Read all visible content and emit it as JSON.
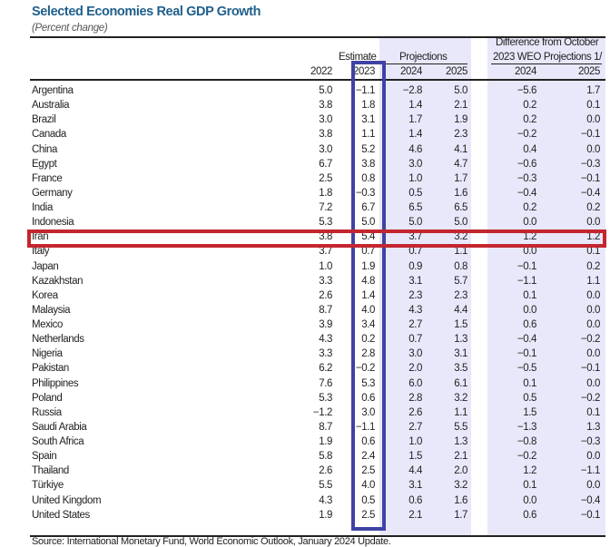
{
  "title": "Selected Economies Real GDP Growth",
  "subtitle": "(Percent change)",
  "headers": {
    "estimate": "Estimate",
    "projections": "Projections",
    "difference_line1": "Difference from October",
    "difference_line2": "2023 WEO Projections 1/",
    "years": [
      "2022",
      "2023",
      "2024",
      "2025",
      "2024",
      "2025"
    ]
  },
  "rows": [
    {
      "country": "Argentina",
      "values": [
        "5.0",
        "−1.1",
        "−2.8",
        "5.0",
        "−5.6",
        "1.7"
      ]
    },
    {
      "country": "Australia",
      "values": [
        "3.8",
        "1.8",
        "1.4",
        "2.1",
        "0.2",
        "0.1"
      ]
    },
    {
      "country": "Brazil",
      "values": [
        "3.0",
        "3.1",
        "1.7",
        "1.9",
        "0.2",
        "0.0"
      ]
    },
    {
      "country": "Canada",
      "values": [
        "3.8",
        "1.1",
        "1.4",
        "2.3",
        "−0.2",
        "−0.1"
      ]
    },
    {
      "country": "China",
      "values": [
        "3.0",
        "5.2",
        "4.6",
        "4.1",
        "0.4",
        "0.0"
      ]
    },
    {
      "country": "Egypt",
      "values": [
        "6.7",
        "3.8",
        "3.0",
        "4.7",
        "−0.6",
        "−0.3"
      ]
    },
    {
      "country": "France",
      "values": [
        "2.5",
        "0.8",
        "1.0",
        "1.7",
        "−0.3",
        "−0.1"
      ]
    },
    {
      "country": "Germany",
      "values": [
        "1.8",
        "−0.3",
        "0.5",
        "1.6",
        "−0.4",
        "−0.4"
      ]
    },
    {
      "country": "India",
      "values": [
        "7.2",
        "6.7",
        "6.5",
        "6.5",
        "0.2",
        "0.2"
      ]
    },
    {
      "country": "Indonesia",
      "values": [
        "5.3",
        "5.0",
        "5.0",
        "5.0",
        "0.0",
        "0.0"
      ]
    },
    {
      "country": "Iran",
      "values": [
        "3.8",
        "5.4",
        "3.7",
        "3.2",
        "1.2",
        "1.2"
      ]
    },
    {
      "country": "Italy",
      "values": [
        "3.7",
        "0.7",
        "0.7",
        "1.1",
        "0.0",
        "0.1"
      ]
    },
    {
      "country": "Japan",
      "values": [
        "1.0",
        "1.9",
        "0.9",
        "0.8",
        "−0.1",
        "0.2"
      ]
    },
    {
      "country": "Kazakhstan",
      "values": [
        "3.3",
        "4.8",
        "3.1",
        "5.7",
        "−1.1",
        "1.1"
      ]
    },
    {
      "country": "Korea",
      "values": [
        "2.6",
        "1.4",
        "2.3",
        "2.3",
        "0.1",
        "0.0"
      ]
    },
    {
      "country": "Malaysia",
      "values": [
        "8.7",
        "4.0",
        "4.3",
        "4.4",
        "0.0",
        "0.0"
      ]
    },
    {
      "country": "Mexico",
      "values": [
        "3.9",
        "3.4",
        "2.7",
        "1.5",
        "0.6",
        "0.0"
      ]
    },
    {
      "country": "Netherlands",
      "values": [
        "4.3",
        "0.2",
        "0.7",
        "1.3",
        "−0.4",
        "−0.2"
      ]
    },
    {
      "country": "Nigeria",
      "values": [
        "3.3",
        "2.8",
        "3.0",
        "3.1",
        "−0.1",
        "0.0"
      ]
    },
    {
      "country": "Pakistan",
      "values": [
        "6.2",
        "−0.2",
        "2.0",
        "3.5",
        "−0.5",
        "−0.1"
      ]
    },
    {
      "country": "Philippines",
      "values": [
        "7.6",
        "5.3",
        "6.0",
        "6.1",
        "0.1",
        "0.0"
      ]
    },
    {
      "country": "Poland",
      "values": [
        "5.3",
        "0.6",
        "2.8",
        "3.2",
        "0.5",
        "−0.2"
      ]
    },
    {
      "country": "Russia",
      "values": [
        "−1.2",
        "3.0",
        "2.6",
        "1.1",
        "1.5",
        "0.1"
      ]
    },
    {
      "country": "Saudi Arabia",
      "values": [
        "8.7",
        "−1.1",
        "2.7",
        "5.5",
        "−1.3",
        "1.3"
      ]
    },
    {
      "country": "South Africa",
      "values": [
        "1.9",
        "0.6",
        "1.0",
        "1.3",
        "−0.8",
        "−0.3"
      ]
    },
    {
      "country": "Spain",
      "values": [
        "5.8",
        "2.4",
        "1.5",
        "2.1",
        "−0.2",
        "0.0"
      ]
    },
    {
      "country": "Thailand",
      "values": [
        "2.6",
        "2.5",
        "4.4",
        "2.0",
        "1.2",
        "−1.1"
      ]
    },
    {
      "country": "Türkiye",
      "values": [
        "5.5",
        "4.0",
        "3.1",
        "3.2",
        "0.1",
        "0.0"
      ]
    },
    {
      "country": "United Kingdom",
      "values": [
        "4.3",
        "0.5",
        "0.6",
        "1.6",
        "0.0",
        "−0.4"
      ]
    },
    {
      "country": "United States",
      "values": [
        "1.9",
        "2.5",
        "2.1",
        "1.7",
        "0.6",
        "−0.1"
      ]
    }
  ],
  "source": "Source: International Monetary Fund, World Economic Outlook, January 2024 Update.",
  "colors": {
    "title": "#1f5f8b",
    "band": "#e8e8fa",
    "blue_box": "#3f43a3",
    "red_box": "#c3262e"
  }
}
